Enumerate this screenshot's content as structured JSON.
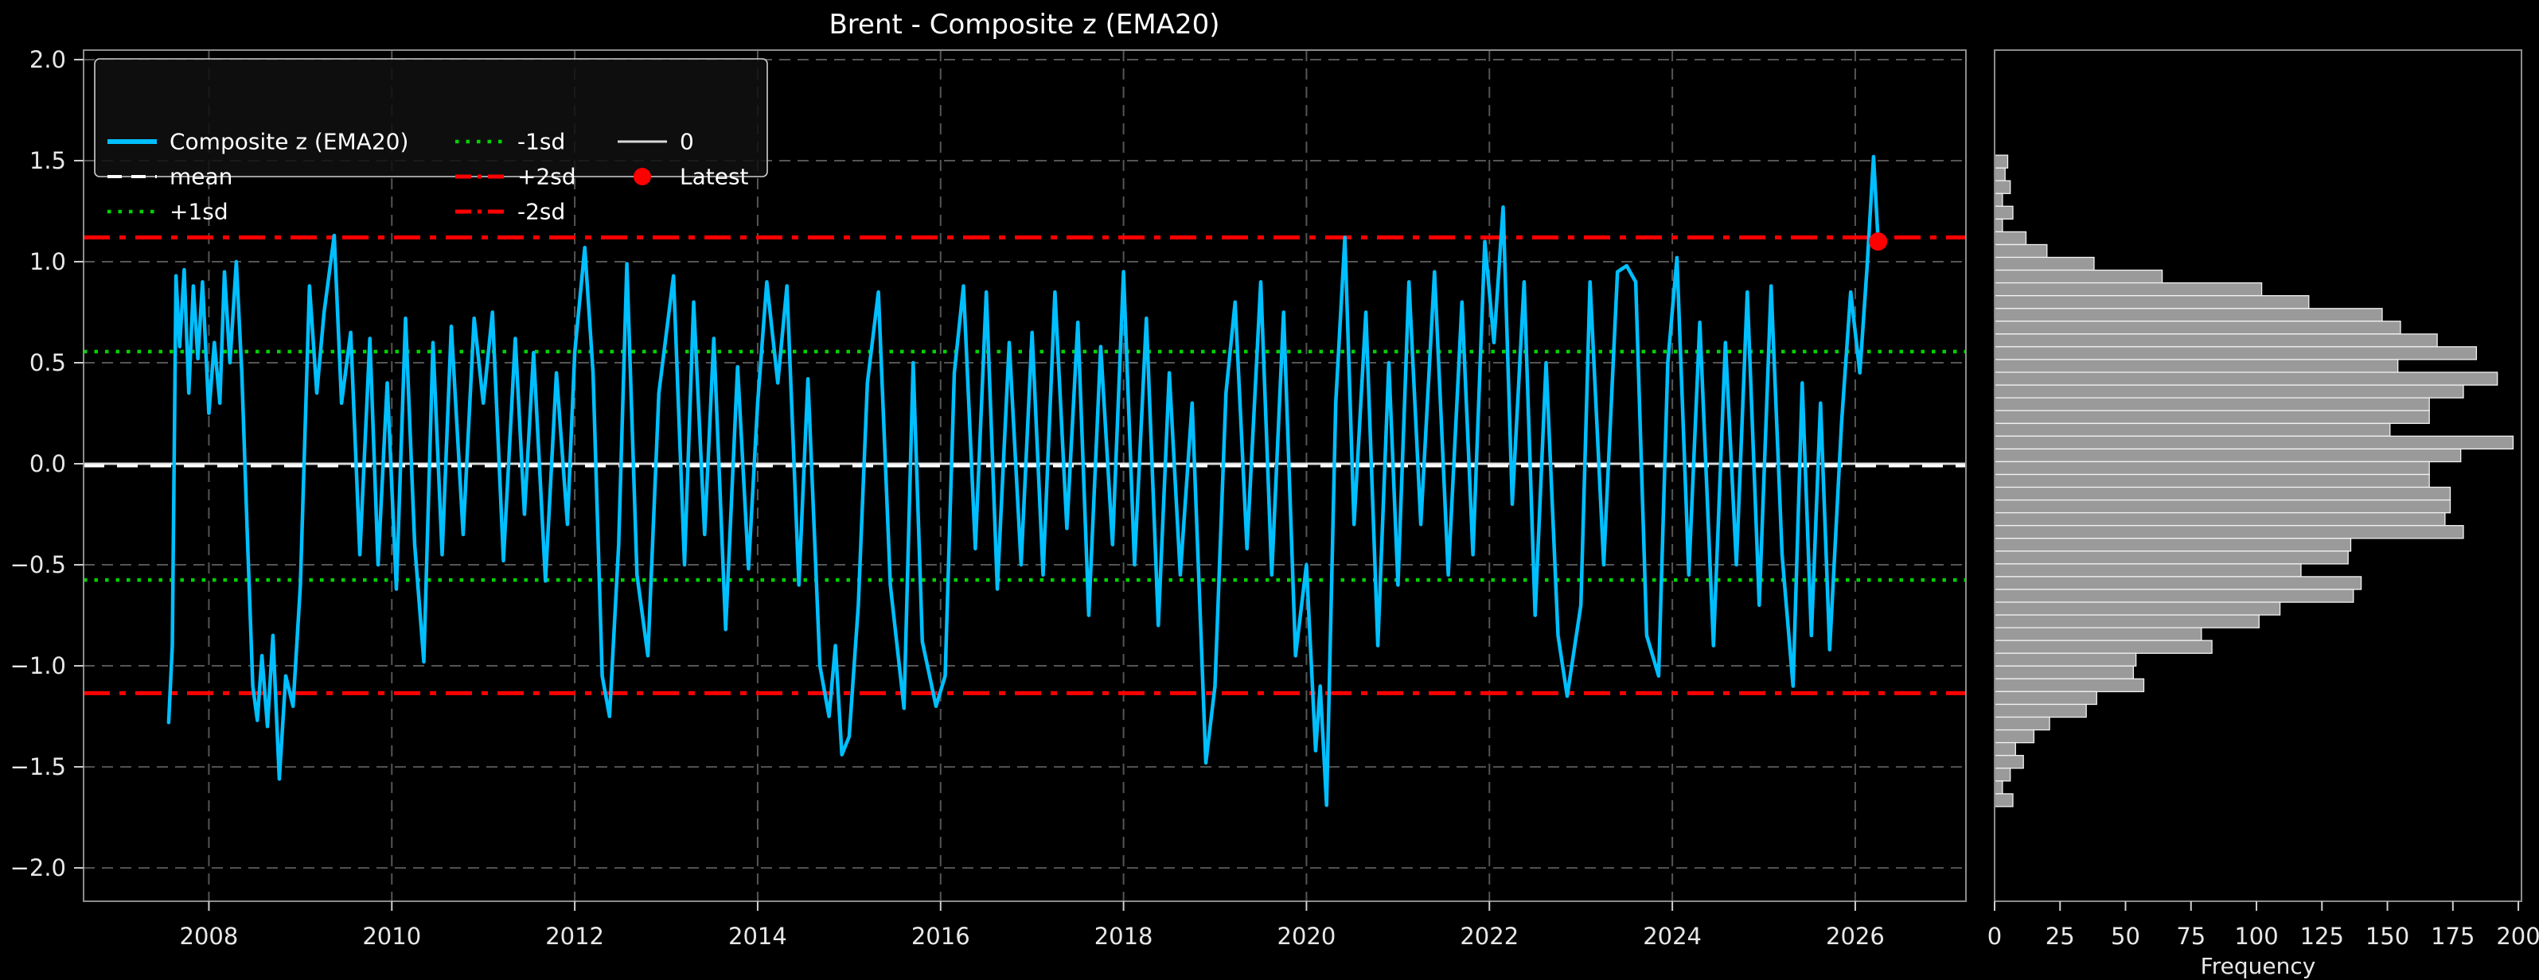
{
  "title": "Brent - Composite z (EMA20)",
  "colors": {
    "background": "#000000",
    "series": "#00bfff",
    "mean": "#ffffff",
    "sd1": "#00d400",
    "sd2": "#ff0000",
    "zero": "#d9d9d9",
    "latest": "#ff0000",
    "grid": "#555555",
    "spine": "#8c8c8c",
    "tick": "#cfcfcf",
    "text": "#e8e8e8",
    "bar_fill": "#9a9a9a",
    "bar_edge": "#f2f2f2",
    "legend_bg": "#101010",
    "legend_border": "#cfcfcf"
  },
  "chart_data": [
    {
      "type": "line",
      "title": "Brent - Composite z (EMA20)",
      "xlabel": "",
      "ylabel": "",
      "xlim": [
        2006.63,
        2027.21
      ],
      "ylim": [
        -2.165,
        2.047
      ],
      "xticks": [
        2008,
        2010,
        2012,
        2014,
        2016,
        2018,
        2020,
        2022,
        2024,
        2026
      ],
      "xtick_labels": [
        "2008",
        "2010",
        "2012",
        "2014",
        "2016",
        "2018",
        "2020",
        "2022",
        "2024",
        "2026"
      ],
      "yticks": [
        2.0,
        1.5,
        1.0,
        0.5,
        0.0,
        -0.5,
        -1.0,
        -1.5,
        -2.0
      ],
      "ytick_labels": [
        "2.0",
        "1.5",
        "1.0",
        "0.5",
        "0.0",
        "−0.5",
        "−1.0",
        "−1.5",
        "−2.0"
      ],
      "grid": true,
      "legend_position": "upper-left",
      "ref_lines": [
        {
          "name": "0",
          "value": 0.0,
          "style": "solid",
          "color": "#d9d9d9",
          "width": 3
        },
        {
          "name": "mean",
          "value": -0.01,
          "style": "dashed",
          "color": "#ffffff",
          "width": 4
        },
        {
          "name": "+1sd",
          "value": 0.555,
          "style": "dotted",
          "color": "#00d400",
          "width": 4.5
        },
        {
          "name": "-1sd",
          "value": -0.575,
          "style": "dotted",
          "color": "#00d400",
          "width": 4.5
        },
        {
          "name": "+2sd",
          "value": 1.12,
          "style": "dashdot",
          "color": "#ff0000",
          "width": 5
        },
        {
          "name": "-2sd",
          "value": -1.135,
          "style": "dashdot",
          "color": "#ff0000",
          "width": 5
        }
      ],
      "latest": {
        "x": 2026.25,
        "y": 1.1,
        "color": "#ff0000",
        "label": "Latest"
      },
      "legend": {
        "columns": [
          [
            {
              "label": "Composite z (EMA20)",
              "key": "series"
            },
            {
              "label": "mean",
              "key": "mean"
            },
            {
              "label": "+1sd",
              "key": "p1sd"
            }
          ],
          [
            {
              "label": "-1sd",
              "key": "m1sd"
            },
            {
              "label": "+2sd",
              "key": "p2sd"
            },
            {
              "label": "-2sd",
              "key": "m2sd"
            }
          ],
          [
            {
              "label": "0",
              "key": "zero"
            },
            {
              "label": "Latest",
              "key": "latest"
            }
          ]
        ]
      },
      "series": [
        {
          "name": "Composite z (EMA20)",
          "color": "#00bfff",
          "points": [
            [
              2007.56,
              -1.28
            ],
            [
              2007.6,
              -0.9
            ],
            [
              2007.64,
              0.93
            ],
            [
              2007.68,
              0.58
            ],
            [
              2007.73,
              0.96
            ],
            [
              2007.78,
              0.35
            ],
            [
              2007.83,
              0.88
            ],
            [
              2007.88,
              0.52
            ],
            [
              2007.93,
              0.9
            ],
            [
              2008.0,
              0.25
            ],
            [
              2008.06,
              0.6
            ],
            [
              2008.12,
              0.3
            ],
            [
              2008.17,
              0.95
            ],
            [
              2008.23,
              0.5
            ],
            [
              2008.3,
              1.0
            ],
            [
              2008.36,
              0.45
            ],
            [
              2008.42,
              -0.35
            ],
            [
              2008.48,
              -1.1
            ],
            [
              2008.53,
              -1.27
            ],
            [
              2008.58,
              -0.95
            ],
            [
              2008.64,
              -1.3
            ],
            [
              2008.7,
              -0.85
            ],
            [
              2008.77,
              -1.56
            ],
            [
              2008.84,
              -1.05
            ],
            [
              2008.92,
              -1.2
            ],
            [
              2009.0,
              -0.6
            ],
            [
              2009.1,
              0.88
            ],
            [
              2009.18,
              0.35
            ],
            [
              2009.26,
              0.75
            ],
            [
              2009.37,
              1.13
            ],
            [
              2009.45,
              0.3
            ],
            [
              2009.55,
              0.65
            ],
            [
              2009.65,
              -0.45
            ],
            [
              2009.76,
              0.62
            ],
            [
              2009.85,
              -0.5
            ],
            [
              2009.95,
              0.4
            ],
            [
              2010.05,
              -0.62
            ],
            [
              2010.15,
              0.72
            ],
            [
              2010.25,
              -0.4
            ],
            [
              2010.35,
              -0.98
            ],
            [
              2010.45,
              0.6
            ],
            [
              2010.55,
              -0.45
            ],
            [
              2010.65,
              0.68
            ],
            [
              2010.78,
              -0.35
            ],
            [
              2010.9,
              0.72
            ],
            [
              2011.0,
              0.3
            ],
            [
              2011.1,
              0.75
            ],
            [
              2011.22,
              -0.48
            ],
            [
              2011.35,
              0.62
            ],
            [
              2011.45,
              -0.25
            ],
            [
              2011.55,
              0.55
            ],
            [
              2011.68,
              -0.58
            ],
            [
              2011.8,
              0.45
            ],
            [
              2011.92,
              -0.3
            ],
            [
              2012.0,
              0.55
            ],
            [
              2012.11,
              1.07
            ],
            [
              2012.2,
              0.45
            ],
            [
              2012.3,
              -1.05
            ],
            [
              2012.38,
              -1.25
            ],
            [
              2012.48,
              -0.4
            ],
            [
              2012.57,
              0.99
            ],
            [
              2012.68,
              -0.55
            ],
            [
              2012.8,
              -0.95
            ],
            [
              2012.92,
              0.35
            ],
            [
              2013.08,
              0.93
            ],
            [
              2013.2,
              -0.5
            ],
            [
              2013.3,
              0.8
            ],
            [
              2013.42,
              -0.35
            ],
            [
              2013.52,
              0.62
            ],
            [
              2013.65,
              -0.82
            ],
            [
              2013.78,
              0.48
            ],
            [
              2013.9,
              -0.52
            ],
            [
              2014.0,
              0.3
            ],
            [
              2014.1,
              0.9
            ],
            [
              2014.22,
              0.4
            ],
            [
              2014.32,
              0.88
            ],
            [
              2014.45,
              -0.6
            ],
            [
              2014.55,
              0.42
            ],
            [
              2014.68,
              -1.0
            ],
            [
              2014.78,
              -1.25
            ],
            [
              2014.85,
              -0.9
            ],
            [
              2014.92,
              -1.44
            ],
            [
              2015.0,
              -1.35
            ],
            [
              2015.1,
              -0.7
            ],
            [
              2015.2,
              0.4
            ],
            [
              2015.32,
              0.85
            ],
            [
              2015.45,
              -0.6
            ],
            [
              2015.6,
              -1.21
            ],
            [
              2015.7,
              0.5
            ],
            [
              2015.8,
              -0.88
            ],
            [
              2015.95,
              -1.2
            ],
            [
              2016.05,
              -1.05
            ],
            [
              2016.15,
              0.45
            ],
            [
              2016.25,
              0.88
            ],
            [
              2016.38,
              -0.42
            ],
            [
              2016.5,
              0.85
            ],
            [
              2016.62,
              -0.62
            ],
            [
              2016.75,
              0.6
            ],
            [
              2016.88,
              -0.5
            ],
            [
              2017.0,
              0.65
            ],
            [
              2017.12,
              -0.55
            ],
            [
              2017.25,
              0.85
            ],
            [
              2017.38,
              -0.32
            ],
            [
              2017.5,
              0.7
            ],
            [
              2017.62,
              -0.75
            ],
            [
              2017.75,
              0.58
            ],
            [
              2017.88,
              -0.4
            ],
            [
              2018.0,
              0.95
            ],
            [
              2018.12,
              -0.5
            ],
            [
              2018.25,
              0.72
            ],
            [
              2018.38,
              -0.8
            ],
            [
              2018.5,
              0.45
            ],
            [
              2018.62,
              -0.55
            ],
            [
              2018.75,
              0.3
            ],
            [
              2018.9,
              -1.48
            ],
            [
              2019.0,
              -1.1
            ],
            [
              2019.12,
              0.35
            ],
            [
              2019.22,
              0.8
            ],
            [
              2019.35,
              -0.42
            ],
            [
              2019.5,
              0.9
            ],
            [
              2019.62,
              -0.55
            ],
            [
              2019.75,
              0.75
            ],
            [
              2019.88,
              -0.95
            ],
            [
              2020.0,
              -0.5
            ],
            [
              2020.1,
              -1.42
            ],
            [
              2020.15,
              -1.1
            ],
            [
              2020.22,
              -1.69
            ],
            [
              2020.32,
              0.3
            ],
            [
              2020.42,
              1.12
            ],
            [
              2020.52,
              -0.3
            ],
            [
              2020.65,
              0.75
            ],
            [
              2020.78,
              -0.9
            ],
            [
              2020.9,
              0.5
            ],
            [
              2021.0,
              -0.6
            ],
            [
              2021.12,
              0.9
            ],
            [
              2021.25,
              -0.3
            ],
            [
              2021.4,
              0.95
            ],
            [
              2021.55,
              -0.55
            ],
            [
              2021.7,
              0.8
            ],
            [
              2021.82,
              -0.45
            ],
            [
              2021.95,
              1.1
            ],
            [
              2022.05,
              0.6
            ],
            [
              2022.15,
              1.27
            ],
            [
              2022.25,
              -0.2
            ],
            [
              2022.38,
              0.9
            ],
            [
              2022.5,
              -0.75
            ],
            [
              2022.62,
              0.5
            ],
            [
              2022.75,
              -0.85
            ],
            [
              2022.85,
              -1.15
            ],
            [
              2023.0,
              -0.7
            ],
            [
              2023.1,
              0.9
            ],
            [
              2023.25,
              -0.5
            ],
            [
              2023.4,
              0.95
            ],
            [
              2023.5,
              0.98
            ],
            [
              2023.6,
              0.9
            ],
            [
              2023.72,
              -0.85
            ],
            [
              2023.85,
              -1.05
            ],
            [
              2023.95,
              0.5
            ],
            [
              2024.05,
              1.02
            ],
            [
              2024.18,
              -0.55
            ],
            [
              2024.3,
              0.7
            ],
            [
              2024.45,
              -0.9
            ],
            [
              2024.58,
              0.6
            ],
            [
              2024.7,
              -0.5
            ],
            [
              2024.82,
              0.85
            ],
            [
              2024.95,
              -0.7
            ],
            [
              2025.08,
              0.88
            ],
            [
              2025.2,
              -0.45
            ],
            [
              2025.32,
              -1.1
            ],
            [
              2025.42,
              0.4
            ],
            [
              2025.52,
              -0.85
            ],
            [
              2025.62,
              0.3
            ],
            [
              2025.72,
              -0.92
            ],
            [
              2025.85,
              0.2
            ],
            [
              2025.95,
              0.85
            ],
            [
              2026.05,
              0.45
            ],
            [
              2026.13,
              0.98
            ],
            [
              2026.2,
              1.52
            ],
            [
              2026.25,
              1.1
            ]
          ]
        }
      ]
    },
    {
      "type": "bar",
      "orientation": "horizontal",
      "title": "",
      "xlabel": "Frequency",
      "ylabel": "",
      "xlim": [
        0,
        201.2
      ],
      "xticks": [
        0,
        25,
        50,
        75,
        100,
        125,
        150,
        175,
        200
      ],
      "xtick_labels": [
        "0",
        "25",
        "50",
        "75",
        "100",
        "125",
        "150",
        "175",
        "200"
      ],
      "grid": false,
      "bins": {
        "z_top": 1.527,
        "z_step": 0.0632
      },
      "counts": [
        5,
        4,
        6,
        3,
        7,
        3,
        12,
        20,
        38,
        64,
        102,
        120,
        148,
        155,
        169,
        184,
        154,
        192,
        179,
        166,
        166,
        151,
        198,
        178,
        166,
        166,
        174,
        174,
        172,
        179,
        136,
        135,
        117,
        140,
        137,
        109,
        101,
        79,
        83,
        54,
        53,
        57,
        39,
        35,
        21,
        15,
        8,
        11,
        6,
        3,
        7
      ]
    }
  ]
}
